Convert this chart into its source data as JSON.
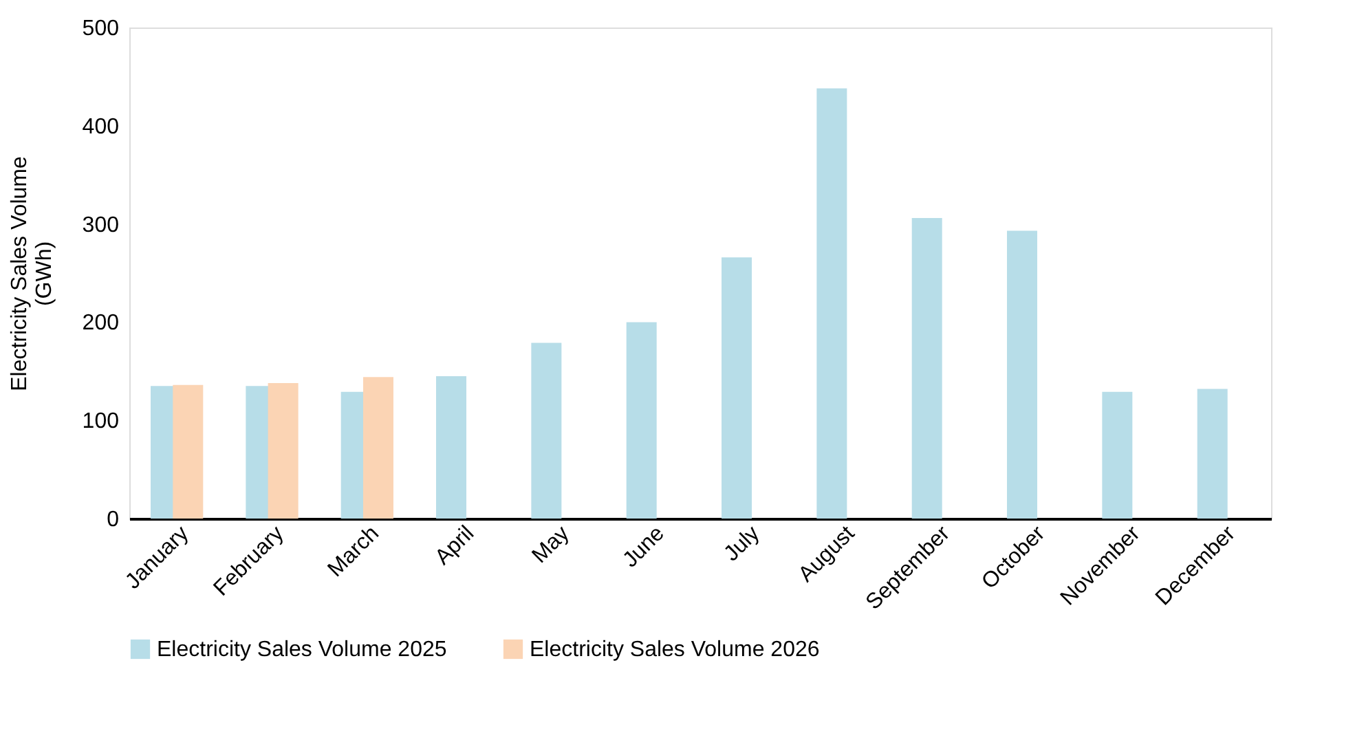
{
  "chart_data": {
    "type": "bar",
    "ylabel": "Electricity Sales Volume\n(GWh)",
    "categories": [
      "January",
      "February",
      "March",
      "April",
      "May",
      "June",
      "July",
      "August",
      "September",
      "October",
      "November",
      "December"
    ],
    "series": [
      {
        "name": "Electricity Sales Volume 2025",
        "color": "#b7dde8",
        "values": [
          135,
          135,
          129,
          145,
          179,
          200,
          266,
          438,
          306,
          293,
          129,
          132
        ]
      },
      {
        "name": "Electricity Sales Volume 2026",
        "color": "#fbd4b4",
        "values": [
          136,
          138,
          144,
          null,
          null,
          null,
          null,
          null,
          null,
          null,
          null,
          null
        ]
      }
    ],
    "ylim": [
      0,
      500
    ],
    "yticks": [
      0,
      100,
      200,
      300,
      400,
      500
    ],
    "grid": false,
    "legend": "bottom"
  }
}
